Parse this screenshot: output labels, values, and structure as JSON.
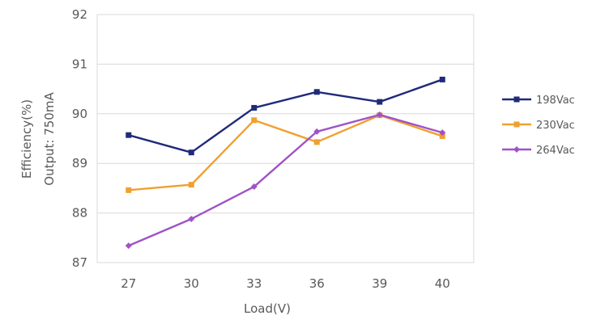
{
  "chart_data": {
    "type": "line",
    "xlabel": "Load(V)",
    "ylabel": "Efficiency(%)",
    "ylabel2": "Output: 750mA",
    "categories": [
      "27",
      "30",
      "33",
      "36",
      "39",
      "40"
    ],
    "ylim": [
      87,
      92
    ],
    "yticks": [
      87,
      88,
      89,
      90,
      91,
      92
    ],
    "grid": true,
    "legend_position": "right",
    "series": [
      {
        "name": "198Vac",
        "color": "#1f2a7a",
        "marker": "square",
        "values": [
          89.57,
          89.22,
          90.12,
          90.44,
          90.24,
          90.69
        ]
      },
      {
        "name": "230Vac",
        "color": "#f0a030",
        "marker": "square",
        "values": [
          88.46,
          88.57,
          89.87,
          89.43,
          89.97,
          89.55
        ]
      },
      {
        "name": "264Vac",
        "color": "#a052c8",
        "marker": "diamond",
        "values": [
          87.34,
          87.88,
          88.53,
          89.64,
          89.98,
          89.62
        ]
      }
    ]
  }
}
